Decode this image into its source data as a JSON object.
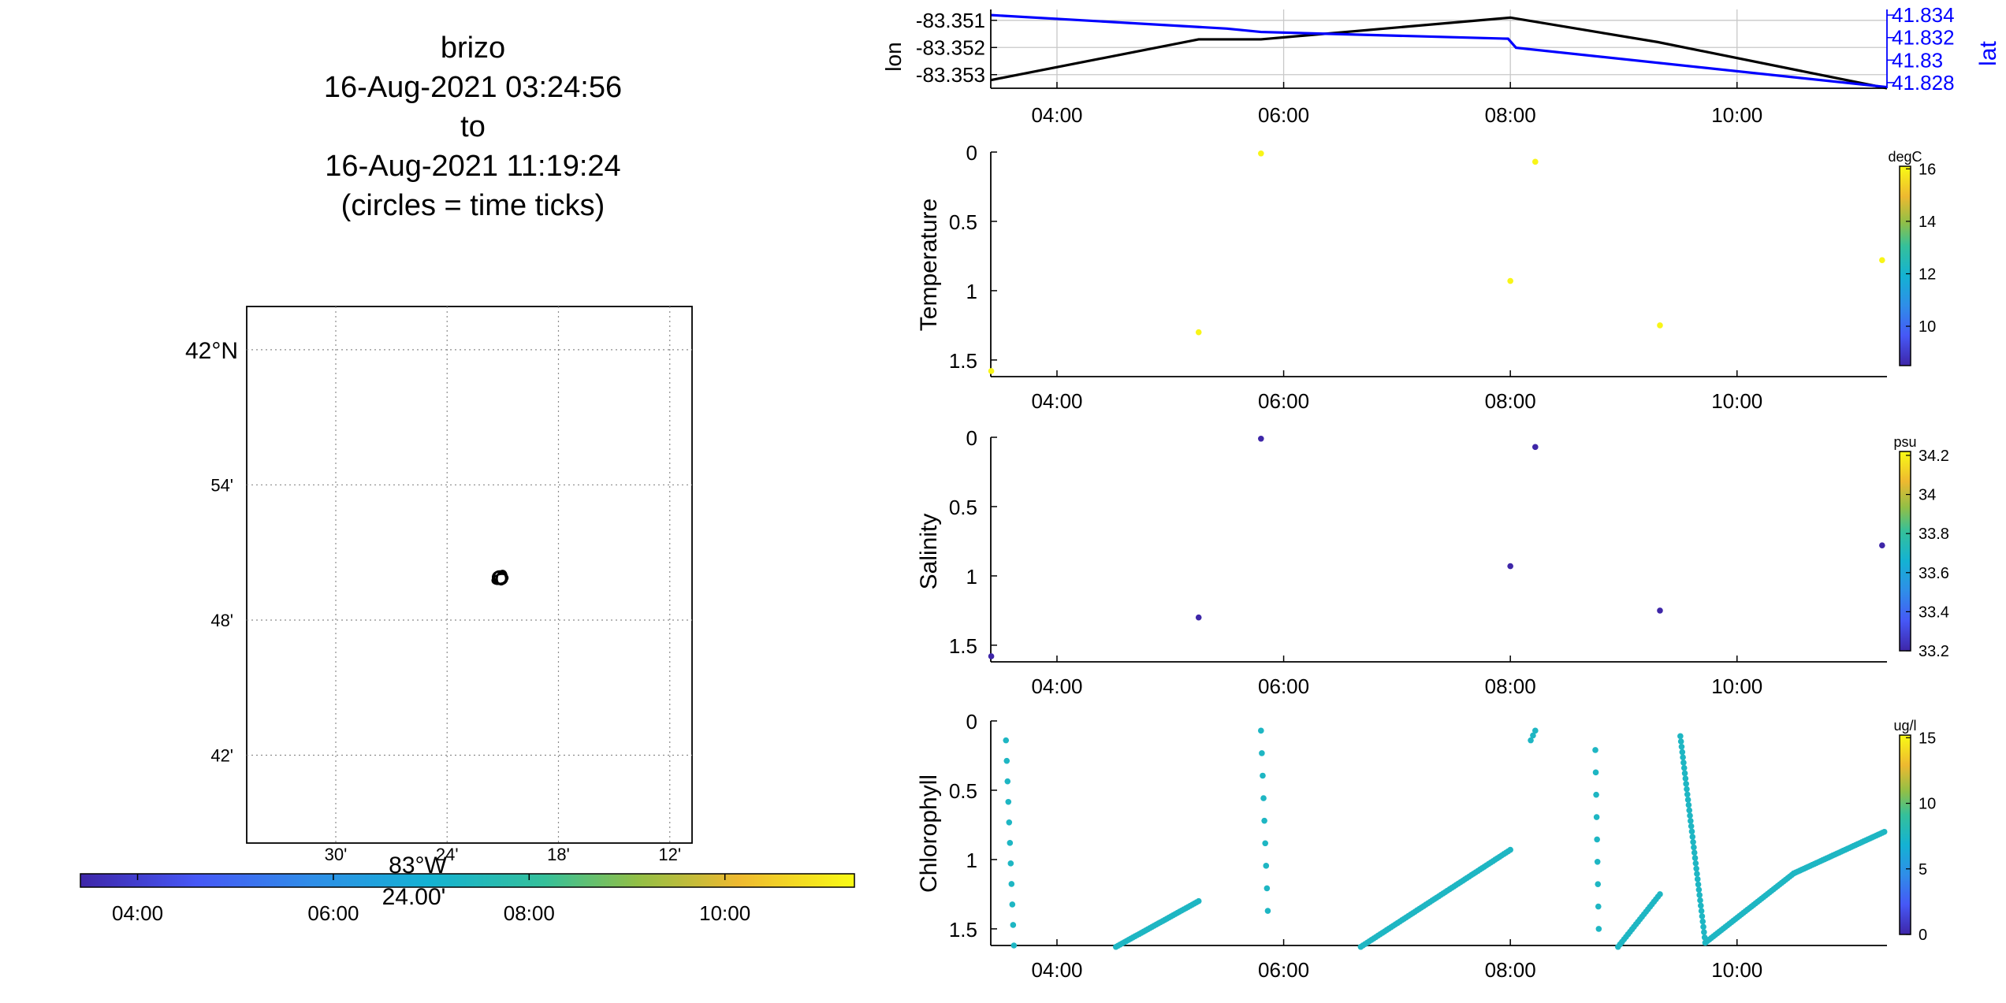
{
  "title_lines": [
    "brizo",
    "16-Aug-2021 03:24:56",
    "to",
    "16-Aug-2021 11:19:24",
    "(circles = time ticks)"
  ],
  "colors": {
    "lon_line": "#000000",
    "lat_line": "#0000ff",
    "grid": "#c8c8c8",
    "map_grid": "#8c8c8c",
    "track": "#000000"
  },
  "chart_data": [
    {
      "type": "map",
      "id": "track-map",
      "lat_ticks": [
        "42°N",
        "54'",
        "48'",
        "42'"
      ],
      "lon_ticks": [
        "30'",
        "24'",
        "18'",
        "12'"
      ],
      "lon_label_main": "83°W",
      "lon_label_sub": "24.00'",
      "lat_tick_values": [
        42.0,
        41.9,
        41.8,
        41.7
      ],
      "lon_tick_values": [
        -83.5,
        -83.4,
        -83.3,
        -83.2
      ],
      "xlim": [
        -83.58,
        -83.18
      ],
      "ylim": [
        41.635,
        42.032
      ],
      "track_center": {
        "lon": -83.352,
        "lat": 41.831
      },
      "grid": true
    },
    {
      "type": "colorbar",
      "id": "time-colorbar",
      "orientation": "horizontal",
      "ticks": [
        "04:00",
        "06:00",
        "08:00",
        "10:00"
      ],
      "tick_values": [
        4,
        6,
        8,
        10
      ],
      "range": [
        3.416,
        11.323
      ],
      "colormap": "parula"
    },
    {
      "type": "line",
      "id": "lonlat-chart",
      "ylabel_left": "lon",
      "ylabel_right": "lat",
      "x_ticks": [
        "04:00",
        "06:00",
        "08:00",
        "10:00"
      ],
      "x_tick_values": [
        4,
        6,
        8,
        10
      ],
      "xlim": [
        3.416,
        11.323
      ],
      "y_left_ticks": [
        "-83.351",
        "-83.352",
        "-83.353"
      ],
      "y_left_values": [
        -83.351,
        -83.352,
        -83.353
      ],
      "y_left_lim": [
        -83.3535,
        -83.3506
      ],
      "y_right_ticks": [
        "41.834",
        "41.832",
        "41.83",
        "41.828"
      ],
      "y_right_values": [
        41.834,
        41.832,
        41.83,
        41.828
      ],
      "y_right_lim": [
        41.8275,
        41.8345
      ],
      "grid": true,
      "series": [
        {
          "name": "lon",
          "axis": "left",
          "x": [
            3.416,
            5.25,
            5.8,
            8.0,
            9.3,
            11.323
          ],
          "y": [
            -83.3532,
            -83.3517,
            -83.3517,
            -83.3509,
            -83.3518,
            -83.3535
          ]
        },
        {
          "name": "lat",
          "axis": "right",
          "x": [
            3.416,
            5.5,
            5.8,
            7.98,
            8.05,
            11.323
          ],
          "y": [
            41.834,
            41.8328,
            41.8325,
            41.8319,
            41.8311,
            41.8276
          ]
        }
      ]
    },
    {
      "type": "scatter",
      "id": "temperature-chart",
      "ylabel": "Temperature",
      "x_ticks": [
        "04:00",
        "06:00",
        "08:00",
        "10:00"
      ],
      "x_tick_values": [
        4,
        6,
        8,
        10
      ],
      "xlim": [
        3.416,
        11.323
      ],
      "y_ticks": [
        "0",
        "0.5",
        "1",
        "1.5"
      ],
      "y_tick_values": [
        0,
        0.5,
        1,
        1.5
      ],
      "ylim": [
        0,
        1.62
      ],
      "y_reversed": true,
      "colorbar": {
        "unit": "degC",
        "ticks": [
          "16",
          "14",
          "12",
          "10"
        ],
        "tick_values": [
          16,
          14,
          12,
          10
        ],
        "range": [
          8.5,
          16.1
        ]
      },
      "points": {
        "x": [
          3.42,
          5.25,
          5.8,
          8.0,
          8.22,
          9.32,
          11.28
        ],
        "y": [
          1.58,
          1.3,
          0.01,
          0.93,
          0.07,
          1.25,
          0.78
        ],
        "value": [
          16,
          16,
          16,
          16,
          16,
          16,
          16
        ]
      }
    },
    {
      "type": "scatter",
      "id": "salinity-chart",
      "ylabel": "Salinity",
      "x_ticks": [
        "04:00",
        "06:00",
        "08:00",
        "10:00"
      ],
      "x_tick_values": [
        4,
        6,
        8,
        10
      ],
      "xlim": [
        3.416,
        11.323
      ],
      "y_ticks": [
        "0",
        "0.5",
        "1",
        "1.5"
      ],
      "y_tick_values": [
        0,
        0.5,
        1,
        1.5
      ],
      "ylim": [
        0,
        1.62
      ],
      "y_reversed": true,
      "colorbar": {
        "unit": "psu",
        "ticks": [
          "34.2",
          "34",
          "33.8",
          "33.6",
          "33.4",
          "33.2"
        ],
        "tick_values": [
          34.2,
          34.0,
          33.8,
          33.6,
          33.4,
          33.2
        ],
        "range": [
          33.2,
          34.22
        ]
      },
      "points": {
        "x": [
          3.42,
          5.25,
          5.8,
          8.0,
          8.22,
          9.32,
          11.28
        ],
        "y": [
          1.58,
          1.3,
          0.01,
          0.93,
          0.07,
          1.25,
          0.78
        ],
        "value": [
          33.2,
          33.2,
          33.2,
          33.2,
          33.2,
          33.2,
          33.2
        ]
      }
    },
    {
      "type": "scatter",
      "id": "chlorophyll-chart",
      "ylabel": "Chlorophyll",
      "x_ticks": [
        "04:00",
        "06:00",
        "08:00",
        "10:00"
      ],
      "x_tick_values": [
        4,
        6,
        8,
        10
      ],
      "xlim": [
        3.416,
        11.323
      ],
      "y_ticks": [
        "0",
        "0.5",
        "1",
        "1.5"
      ],
      "y_tick_values": [
        0,
        0.5,
        1,
        1.5
      ],
      "ylim": [
        0,
        1.62
      ],
      "y_reversed": true,
      "colorbar": {
        "unit": "ug/l",
        "ticks": [
          "15",
          "10",
          "5",
          "0"
        ],
        "tick_values": [
          15,
          10,
          5,
          0
        ],
        "range": [
          0,
          15.2
        ]
      },
      "profiles": [
        {
          "x_start": 3.55,
          "x_end": 3.62,
          "y_start": 0.14,
          "y_end": 1.62,
          "n": 11,
          "value": 7.5
        },
        {
          "x_start": 4.52,
          "x_end": 5.25,
          "y_start": 1.63,
          "y_end": 1.3,
          "n": 40,
          "value": 7.5
        },
        {
          "x_start": 5.8,
          "x_end": 5.86,
          "y_start": 0.07,
          "y_end": 1.37,
          "n": 9,
          "value": 7.5
        },
        {
          "x_start": 6.68,
          "x_end": 8.0,
          "y_start": 1.63,
          "y_end": 0.93,
          "n": 70,
          "value": 7.5
        },
        {
          "x_start": 8.18,
          "x_end": 8.22,
          "y_start": 0.14,
          "y_end": 0.07,
          "n": 3,
          "value": 7.5
        },
        {
          "x_start": 8.75,
          "x_end": 8.78,
          "y_start": 0.21,
          "y_end": 1.5,
          "n": 9,
          "value": 7.5
        },
        {
          "x_start": 8.95,
          "x_end": 9.32,
          "y_start": 1.63,
          "y_end": 1.25,
          "n": 22,
          "value": 7.5
        },
        {
          "x_start": 9.5,
          "x_end": 9.72,
          "y_start": 0.11,
          "y_end": 1.6,
          "n": 40,
          "value": 7.5
        },
        {
          "x_start": 9.72,
          "x_end": 10.5,
          "y_start": 1.6,
          "y_end": 1.1,
          "n": 45,
          "value": 7.5
        },
        {
          "x_start": 10.5,
          "x_end": 11.3,
          "y_start": 1.1,
          "y_end": 0.8,
          "n": 45,
          "value": 7.5
        }
      ]
    }
  ]
}
